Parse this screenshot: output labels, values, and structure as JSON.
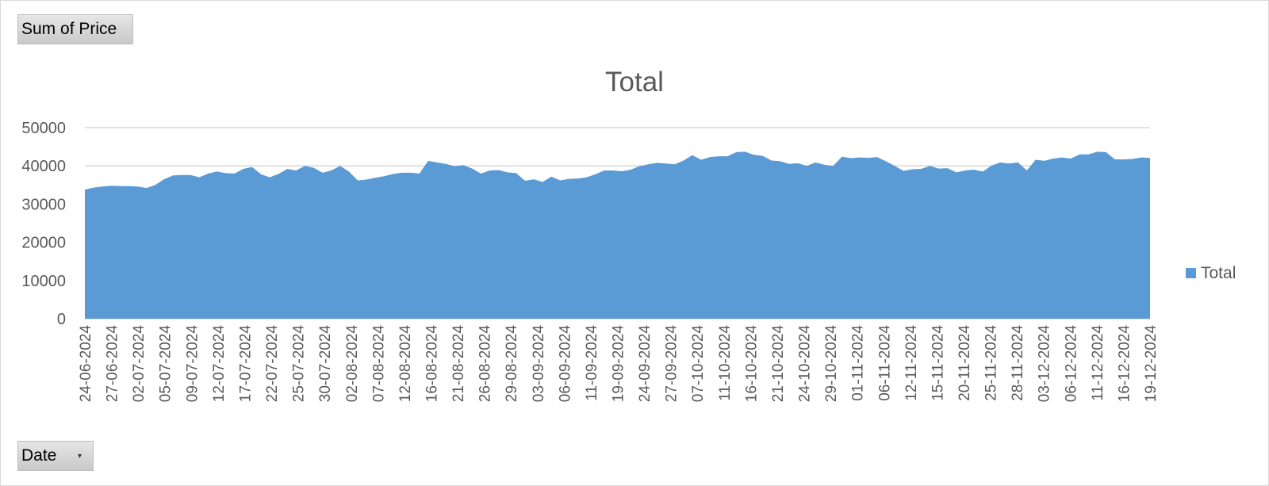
{
  "pivot": {
    "values_field": "Sum of Price",
    "axis_field": "Date",
    "axis_dropdown_icon": "dropdown-arrow-icon"
  },
  "colors": {
    "area_fill": "#5b9bd5",
    "gridline": "#d9d9d9",
    "text": "#595959"
  },
  "chart_data": {
    "type": "area",
    "title": "Total",
    "xlabel": "",
    "ylabel": "",
    "ylim": [
      0,
      50000
    ],
    "yticks": [
      0,
      10000,
      20000,
      30000,
      40000,
      50000
    ],
    "grid": true,
    "legend_position": "right",
    "x_tick_labels": [
      "24-06-2024",
      "27-06-2024",
      "02-07-2024",
      "05-07-2024",
      "09-07-2024",
      "12-07-2024",
      "17-07-2024",
      "22-07-2024",
      "25-07-2024",
      "30-07-2024",
      "02-08-2024",
      "07-08-2024",
      "12-08-2024",
      "16-08-2024",
      "21-08-2024",
      "26-08-2024",
      "29-08-2024",
      "03-09-2024",
      "06-09-2024",
      "11-09-2024",
      "19-09-2024",
      "24-09-2024",
      "27-09-2024",
      "07-10-2024",
      "11-10-2024",
      "16-10-2024",
      "21-10-2024",
      "24-10-2024",
      "29-10-2024",
      "01-11-2024",
      "06-11-2024",
      "12-11-2024",
      "15-11-2024",
      "20-11-2024",
      "25-11-2024",
      "28-11-2024",
      "03-12-2024",
      "06-12-2024",
      "11-12-2024",
      "16-12-2024",
      "19-12-2024"
    ],
    "series": [
      {
        "name": "Total",
        "values": [
          33800,
          34300,
          34600,
          34800,
          34700,
          34700,
          34600,
          34200,
          35000,
          36500,
          37500,
          37600,
          37600,
          37000,
          38000,
          38500,
          38100,
          38000,
          39200,
          39700,
          37800,
          37000,
          37900,
          39200,
          38800,
          40000,
          39500,
          38200,
          38800,
          40000,
          38500,
          36200,
          36400,
          36900,
          37300,
          37900,
          38200,
          38200,
          38000,
          41300,
          40900,
          40500,
          39900,
          40200,
          39300,
          38000,
          38800,
          38900,
          38300,
          38100,
          36100,
          36500,
          35800,
          37200,
          36200,
          36600,
          36700,
          37000,
          37800,
          38800,
          38800,
          38600,
          39000,
          39900,
          40400,
          40800,
          40600,
          40400,
          41400,
          42800,
          41600,
          42300,
          42500,
          42500,
          43600,
          43700,
          42900,
          42600,
          41400,
          41200,
          40500,
          40700,
          40000,
          40900,
          40300,
          40000,
          42400,
          42000,
          42200,
          42100,
          42300,
          41200,
          40000,
          38700,
          39100,
          39200,
          40000,
          39300,
          39400,
          38300,
          38800,
          39000,
          38500,
          40100,
          40900,
          40600,
          40900,
          38800,
          41600,
          41300,
          41900,
          42200,
          41900,
          43000,
          43000,
          43700,
          43600,
          41700,
          41700,
          41800,
          42200,
          42100
        ]
      }
    ]
  }
}
